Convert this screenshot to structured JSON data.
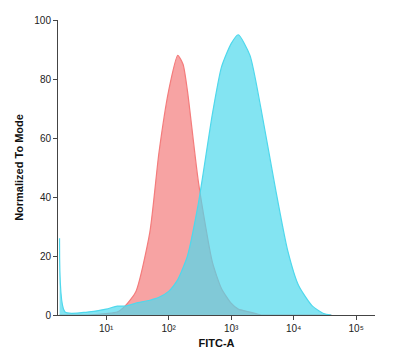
{
  "chart_data": {
    "type": "area",
    "x_label": "FITC-A",
    "y_label": "Normalized To Mode",
    "log": "x",
    "grid": false,
    "x": [
      1.8,
      2.2,
      5,
      10,
      15,
      20,
      30,
      50,
      70,
      100,
      140,
      170,
      200,
      300,
      500,
      700,
      1000,
      1300,
      2000,
      3000,
      5000,
      8000,
      12000,
      20000,
      30000,
      40000
    ],
    "series": [
      {
        "color": "#f47c7c",
        "values": [
          0,
          0,
          0,
          0.5,
          1,
          3,
          8,
          28,
          55,
          76,
          88,
          85,
          76,
          45,
          18,
          9,
          4,
          2,
          1,
          0,
          0,
          0,
          0,
          0,
          0,
          0
        ]
      },
      {
        "color": "#4fd8ec",
        "values": [
          26,
          1,
          1,
          2,
          3,
          3,
          4,
          5,
          6,
          8,
          12,
          16,
          20,
          38,
          68,
          84,
          92,
          95,
          88,
          70,
          44,
          22,
          10,
          3,
          0.5,
          0
        ]
      }
    ],
    "xlim": [
      1.7,
      200000
    ],
    "xticks": [
      {
        "value": 10,
        "label": "10¹"
      },
      {
        "value": 100,
        "label": "10²"
      },
      {
        "value": 1000,
        "label": "10³"
      },
      {
        "value": 10000,
        "label": "10⁴"
      },
      {
        "value": 100000,
        "label": "10⁵"
      }
    ],
    "ylim": [
      0,
      100
    ],
    "yticks": [
      0,
      20,
      40,
      60,
      80,
      100
    ]
  }
}
